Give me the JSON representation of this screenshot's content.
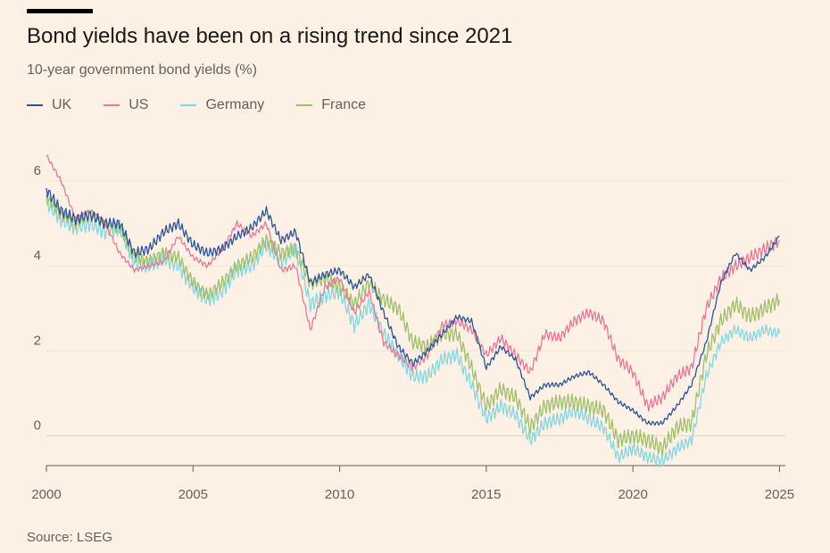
{
  "header": {
    "title": "Bond yields have been on a rising trend since 2021",
    "subtitle": "10-year government bond yields (%)"
  },
  "footer": {
    "source": "Source: LSEG"
  },
  "colors": {
    "background": "#fdf1e5",
    "UK": "#2d5496",
    "US": "#e3799a",
    "Germany": "#86d6e0",
    "France": "#9fbf6c"
  },
  "chart_data": {
    "type": "line",
    "title": "Bond yields have been on a rising trend since 2021",
    "subtitle": "10-year government bond yields (%)",
    "xlabel": "",
    "ylabel": "",
    "xlim": [
      2000,
      2025.2
    ],
    "ylim": [
      -0.7,
      6.9
    ],
    "x_ticks": [
      2000,
      2005,
      2010,
      2015,
      2020,
      2025
    ],
    "y_ticks": [
      0,
      2,
      4,
      6
    ],
    "grid": true,
    "legend_position": "top-left",
    "x": [
      2000.0,
      2000.5,
      2001.0,
      2001.5,
      2002.0,
      2002.5,
      2003.0,
      2003.5,
      2004.0,
      2004.5,
      2005.0,
      2005.5,
      2006.0,
      2006.5,
      2007.0,
      2007.5,
      2008.0,
      2008.5,
      2009.0,
      2009.5,
      2010.0,
      2010.5,
      2011.0,
      2011.5,
      2012.0,
      2012.5,
      2013.0,
      2013.5,
      2014.0,
      2014.5,
      2015.0,
      2015.5,
      2016.0,
      2016.5,
      2017.0,
      2017.5,
      2018.0,
      2018.5,
      2019.0,
      2019.5,
      2020.0,
      2020.5,
      2021.0,
      2021.5,
      2022.0,
      2022.5,
      2023.0,
      2023.5,
      2024.0,
      2024.5,
      2025.0
    ],
    "series": [
      {
        "name": "UK",
        "values": [
          5.8,
          5.3,
          5.1,
          5.2,
          5.0,
          5.0,
          4.3,
          4.4,
          4.8,
          5.0,
          4.5,
          4.3,
          4.4,
          4.7,
          4.9,
          5.3,
          4.6,
          4.8,
          3.6,
          3.8,
          3.9,
          3.5,
          3.8,
          2.9,
          2.1,
          1.7,
          2.0,
          2.4,
          2.8,
          2.7,
          1.6,
          2.1,
          1.8,
          0.9,
          1.2,
          1.2,
          1.4,
          1.5,
          1.2,
          0.8,
          0.6,
          0.3,
          0.3,
          0.7,
          1.2,
          2.2,
          3.6,
          4.3,
          3.9,
          4.2,
          4.7
        ]
      },
      {
        "name": "US",
        "values": [
          6.6,
          6.0,
          5.1,
          5.3,
          5.0,
          4.3,
          3.9,
          4.0,
          4.1,
          4.7,
          4.2,
          4.0,
          4.4,
          5.0,
          4.7,
          5.0,
          3.9,
          4.0,
          2.5,
          3.5,
          3.7,
          2.9,
          3.4,
          2.2,
          1.9,
          1.6,
          1.9,
          2.6,
          2.7,
          2.5,
          1.9,
          2.3,
          1.9,
          1.5,
          2.4,
          2.3,
          2.7,
          2.9,
          2.7,
          1.8,
          1.5,
          0.7,
          0.9,
          1.4,
          1.6,
          3.0,
          3.7,
          4.0,
          4.2,
          4.4,
          4.6
        ]
      },
      {
        "name": "Germany",
        "values": [
          5.5,
          5.1,
          4.9,
          5.0,
          4.8,
          4.9,
          4.1,
          4.0,
          4.2,
          4.0,
          3.5,
          3.2,
          3.4,
          3.9,
          4.0,
          4.5,
          4.1,
          4.4,
          3.1,
          3.3,
          3.4,
          2.6,
          3.1,
          2.4,
          1.9,
          1.4,
          1.4,
          1.8,
          1.9,
          1.2,
          0.4,
          0.7,
          0.5,
          -0.1,
          0.3,
          0.4,
          0.6,
          0.4,
          0.2,
          -0.5,
          -0.3,
          -0.5,
          -0.6,
          -0.3,
          -0.1,
          1.4,
          2.2,
          2.5,
          2.3,
          2.5,
          2.4
        ]
      },
      {
        "name": "France",
        "values": [
          5.6,
          5.2,
          5.0,
          5.2,
          5.0,
          4.9,
          4.2,
          4.1,
          4.3,
          4.2,
          3.6,
          3.3,
          3.6,
          4.0,
          4.2,
          4.6,
          4.3,
          4.4,
          3.6,
          3.7,
          3.5,
          3.1,
          3.6,
          3.2,
          3.0,
          2.2,
          2.1,
          2.4,
          2.4,
          1.6,
          0.7,
          1.1,
          0.9,
          0.2,
          0.7,
          0.8,
          0.8,
          0.7,
          0.6,
          -0.1,
          0.0,
          -0.1,
          -0.3,
          0.2,
          0.3,
          1.9,
          2.7,
          3.1,
          2.8,
          3.0,
          3.2
        ]
      }
    ]
  }
}
